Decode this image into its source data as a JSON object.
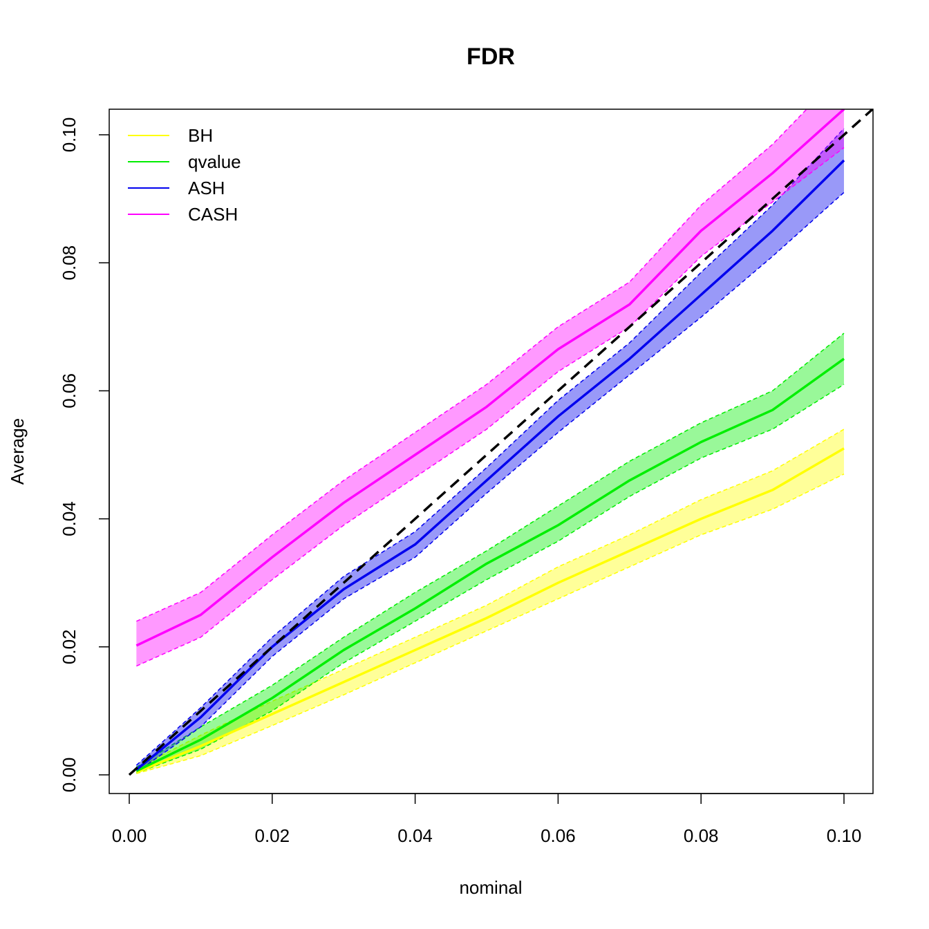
{
  "chart_data": {
    "type": "line",
    "title": "FDR",
    "xlabel": "nominal",
    "ylabel": "Average",
    "xlim": [
      0,
      0.1
    ],
    "ylim": [
      0,
      0.1
    ],
    "xticks": [
      "0.00",
      "0.02",
      "0.04",
      "0.06",
      "0.08",
      "0.10"
    ],
    "yticks": [
      "0.00",
      "0.02",
      "0.04",
      "0.06",
      "0.08",
      "0.10"
    ],
    "grid": false,
    "legend_position": "top-left",
    "reference_line": {
      "style": "dashed",
      "color": "#000000",
      "x": [
        0,
        0.1
      ],
      "y": [
        0,
        0.1
      ]
    },
    "x": [
      0.001,
      0.01,
      0.02,
      0.03,
      0.04,
      0.05,
      0.06,
      0.07,
      0.08,
      0.09,
      0.1
    ],
    "series": [
      {
        "name": "BH",
        "color": "#ffff00",
        "values": [
          0.0004,
          0.0045,
          0.0095,
          0.0145,
          0.0195,
          0.0245,
          0.03,
          0.035,
          0.04,
          0.0445,
          0.051
        ],
        "lower": [
          0.0002,
          0.003,
          0.0077,
          0.0125,
          0.0175,
          0.0225,
          0.0275,
          0.0325,
          0.0375,
          0.0415,
          0.047
        ],
        "upper": [
          0.001,
          0.0062,
          0.0115,
          0.0165,
          0.0215,
          0.0265,
          0.0325,
          0.0375,
          0.043,
          0.0475,
          0.054
        ]
      },
      {
        "name": "qvalue",
        "color": "#00ee00",
        "values": [
          0.0006,
          0.0055,
          0.012,
          0.0195,
          0.026,
          0.033,
          0.039,
          0.046,
          0.052,
          0.057,
          0.065
        ],
        "lower": [
          0.0003,
          0.004,
          0.01,
          0.0175,
          0.024,
          0.0305,
          0.0365,
          0.0435,
          0.0495,
          0.054,
          0.061
        ],
        "upper": [
          0.0012,
          0.0075,
          0.014,
          0.0215,
          0.0285,
          0.035,
          0.042,
          0.049,
          0.055,
          0.06,
          0.069
        ]
      },
      {
        "name": "ASH",
        "color": "#0000ee",
        "values": [
          0.0008,
          0.009,
          0.02,
          0.029,
          0.036,
          0.046,
          0.056,
          0.065,
          0.075,
          0.085,
          0.096
        ],
        "lower": [
          0.0004,
          0.0075,
          0.0185,
          0.0275,
          0.034,
          0.044,
          0.0535,
          0.0625,
          0.0715,
          0.081,
          0.091
        ],
        "upper": [
          0.0015,
          0.0105,
          0.0215,
          0.031,
          0.038,
          0.048,
          0.0585,
          0.0675,
          0.0785,
          0.089,
          0.101
        ]
      },
      {
        "name": "CASH",
        "color": "#ff00ff",
        "values": [
          0.0202,
          0.025,
          0.034,
          0.0425,
          0.05,
          0.0575,
          0.0665,
          0.0735,
          0.085,
          0.094,
          0.104
        ],
        "lower": [
          0.017,
          0.0215,
          0.0305,
          0.039,
          0.0465,
          0.054,
          0.063,
          0.07,
          0.081,
          0.0895,
          0.098
        ],
        "upper": [
          0.024,
          0.0285,
          0.0375,
          0.046,
          0.0535,
          0.061,
          0.07,
          0.077,
          0.089,
          0.0985,
          0.11
        ]
      }
    ]
  }
}
